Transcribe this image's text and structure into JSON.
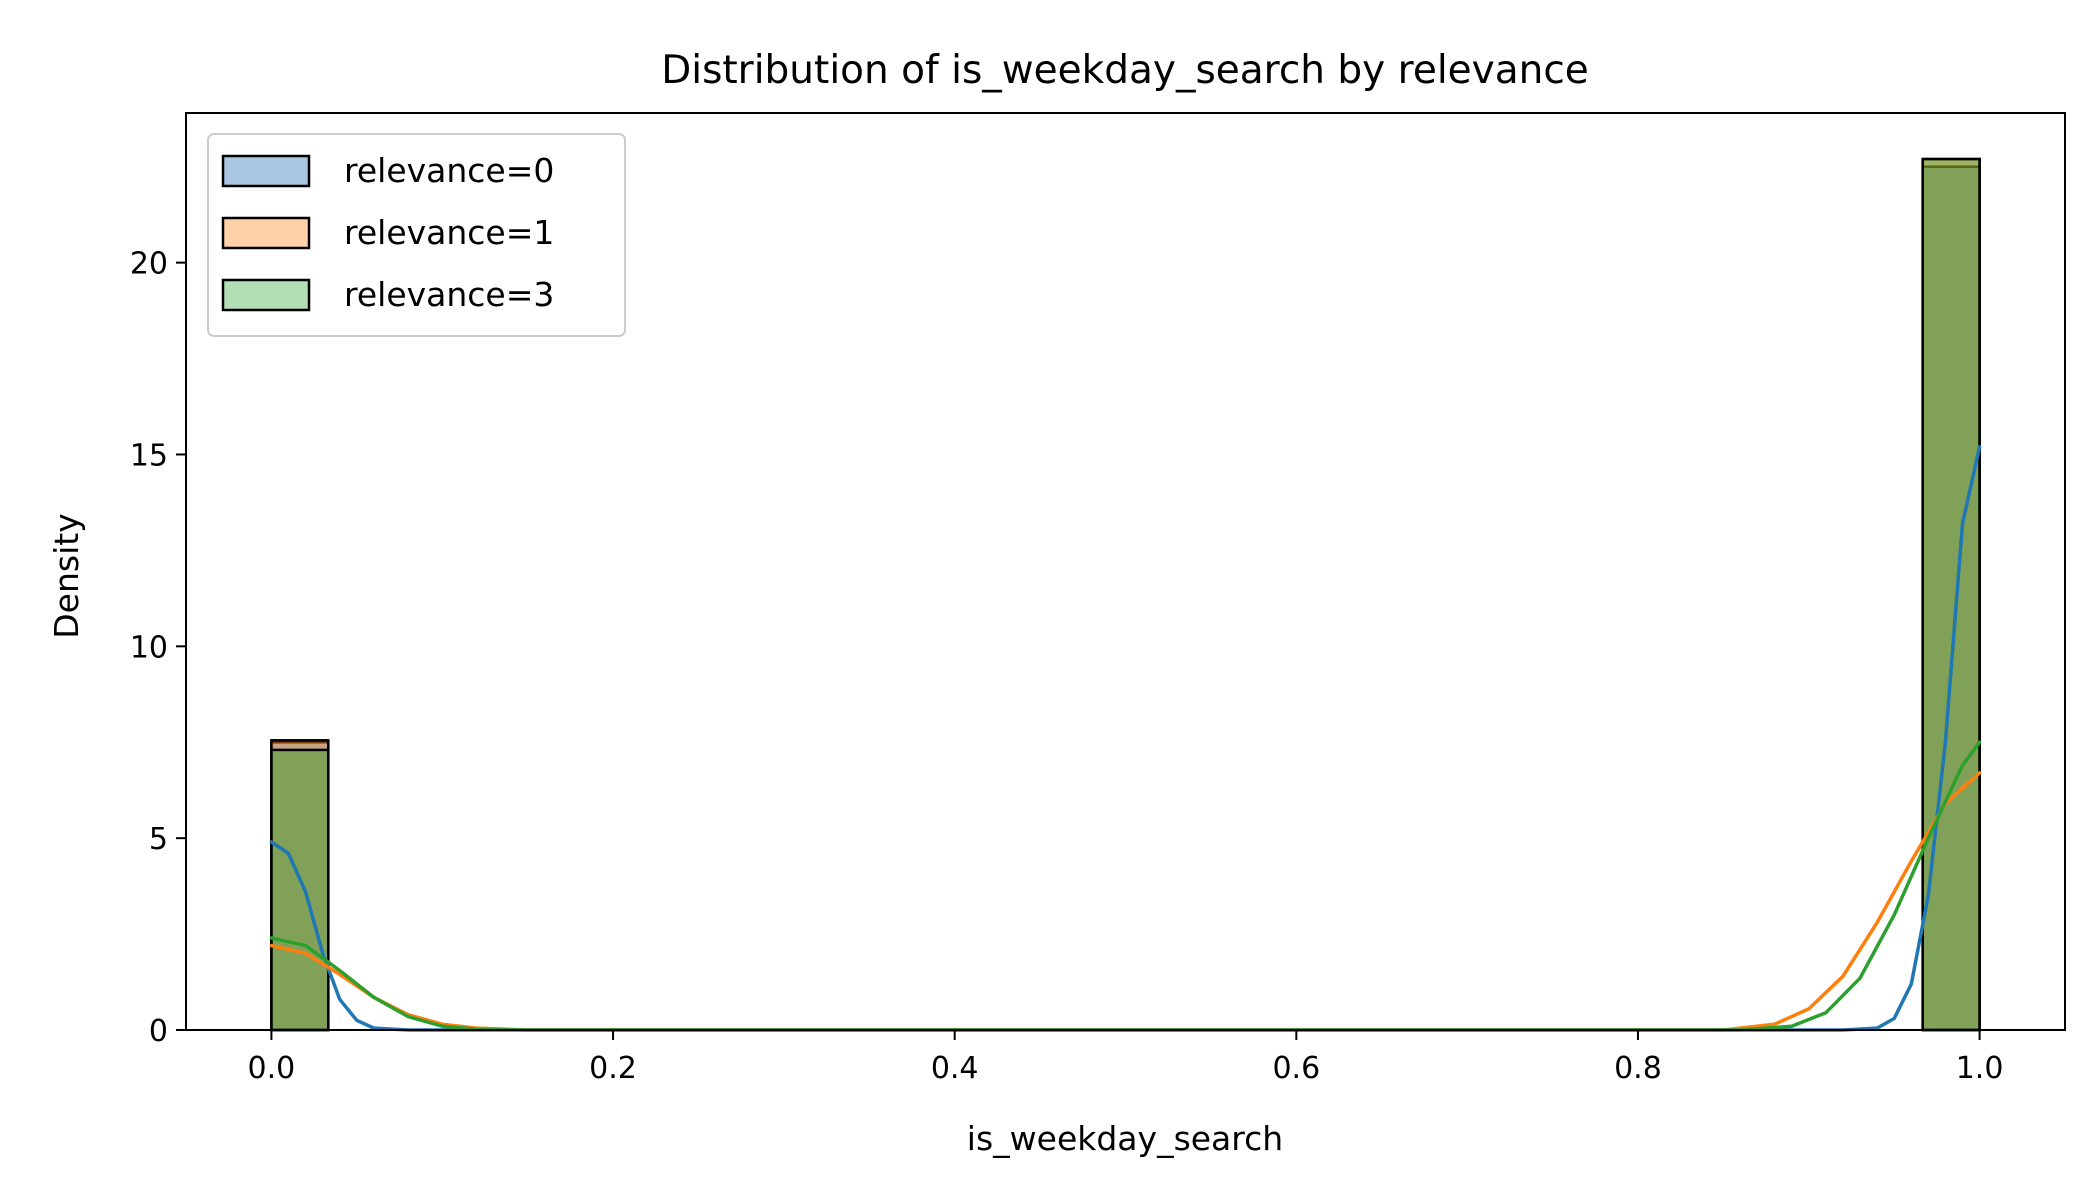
{
  "chart_data": {
    "type": "histogram+kde",
    "title": "Distribution of is_weekday_search by relevance",
    "xlabel": "is_weekday_search",
    "ylabel": "Density",
    "xlim": [
      -0.05,
      1.05
    ],
    "ylim": [
      0,
      23.9
    ],
    "xticks": [
      0.0,
      0.2,
      0.4,
      0.6,
      0.8,
      1.0
    ],
    "xtick_labels": [
      "0.0",
      "0.2",
      "0.4",
      "0.6",
      "0.8",
      "1.0"
    ],
    "yticks": [
      0,
      5,
      10,
      15,
      20
    ],
    "ytick_labels": [
      "0",
      "5",
      "10",
      "15",
      "20"
    ],
    "grid": false,
    "legend_position": "top-left",
    "bins": [
      [
        0.0,
        0.0333
      ],
      [
        0.9667,
        1.0
      ]
    ],
    "series": [
      {
        "name": "relevance=0",
        "color": "#1f77b4",
        "fill": "#a9c6e2",
        "bar_heights": [
          7.5,
          22.5
        ],
        "kde": [
          [
            0.0,
            4.9
          ],
          [
            0.01,
            4.6
          ],
          [
            0.02,
            3.6
          ],
          [
            0.03,
            2.0
          ],
          [
            0.04,
            0.8
          ],
          [
            0.05,
            0.25
          ],
          [
            0.06,
            0.05
          ],
          [
            0.08,
            0.0
          ],
          [
            0.92,
            0.0
          ],
          [
            0.94,
            0.05
          ],
          [
            0.95,
            0.3
          ],
          [
            0.96,
            1.2
          ],
          [
            0.97,
            3.5
          ],
          [
            0.98,
            7.5
          ],
          [
            0.99,
            13.2
          ],
          [
            1.0,
            15.2
          ]
        ]
      },
      {
        "name": "relevance=1",
        "color": "#ff7f0e",
        "fill": "#ffd1a8",
        "bar_heights": [
          7.55,
          22.7
        ],
        "kde": [
          [
            0.0,
            2.2
          ],
          [
            0.02,
            2.0
          ],
          [
            0.04,
            1.45
          ],
          [
            0.06,
            0.85
          ],
          [
            0.08,
            0.4
          ],
          [
            0.1,
            0.15
          ],
          [
            0.12,
            0.05
          ],
          [
            0.15,
            0.0
          ],
          [
            0.85,
            0.0
          ],
          [
            0.88,
            0.15
          ],
          [
            0.9,
            0.55
          ],
          [
            0.92,
            1.4
          ],
          [
            0.94,
            2.8
          ],
          [
            0.96,
            4.4
          ],
          [
            0.98,
            5.9
          ],
          [
            1.0,
            6.7
          ]
        ]
      },
      {
        "name": "relevance=3",
        "color": "#2ca02c",
        "fill": "#b4deb4",
        "bar_heights": [
          7.3,
          22.7
        ],
        "kde": [
          [
            0.0,
            2.4
          ],
          [
            0.02,
            2.2
          ],
          [
            0.04,
            1.55
          ],
          [
            0.06,
            0.85
          ],
          [
            0.08,
            0.35
          ],
          [
            0.1,
            0.1
          ],
          [
            0.12,
            0.02
          ],
          [
            0.15,
            0.0
          ],
          [
            0.86,
            0.0
          ],
          [
            0.89,
            0.1
          ],
          [
            0.91,
            0.45
          ],
          [
            0.93,
            1.35
          ],
          [
            0.95,
            3.0
          ],
          [
            0.97,
            5.0
          ],
          [
            0.99,
            6.9
          ],
          [
            1.0,
            7.5
          ]
        ]
      }
    ]
  }
}
